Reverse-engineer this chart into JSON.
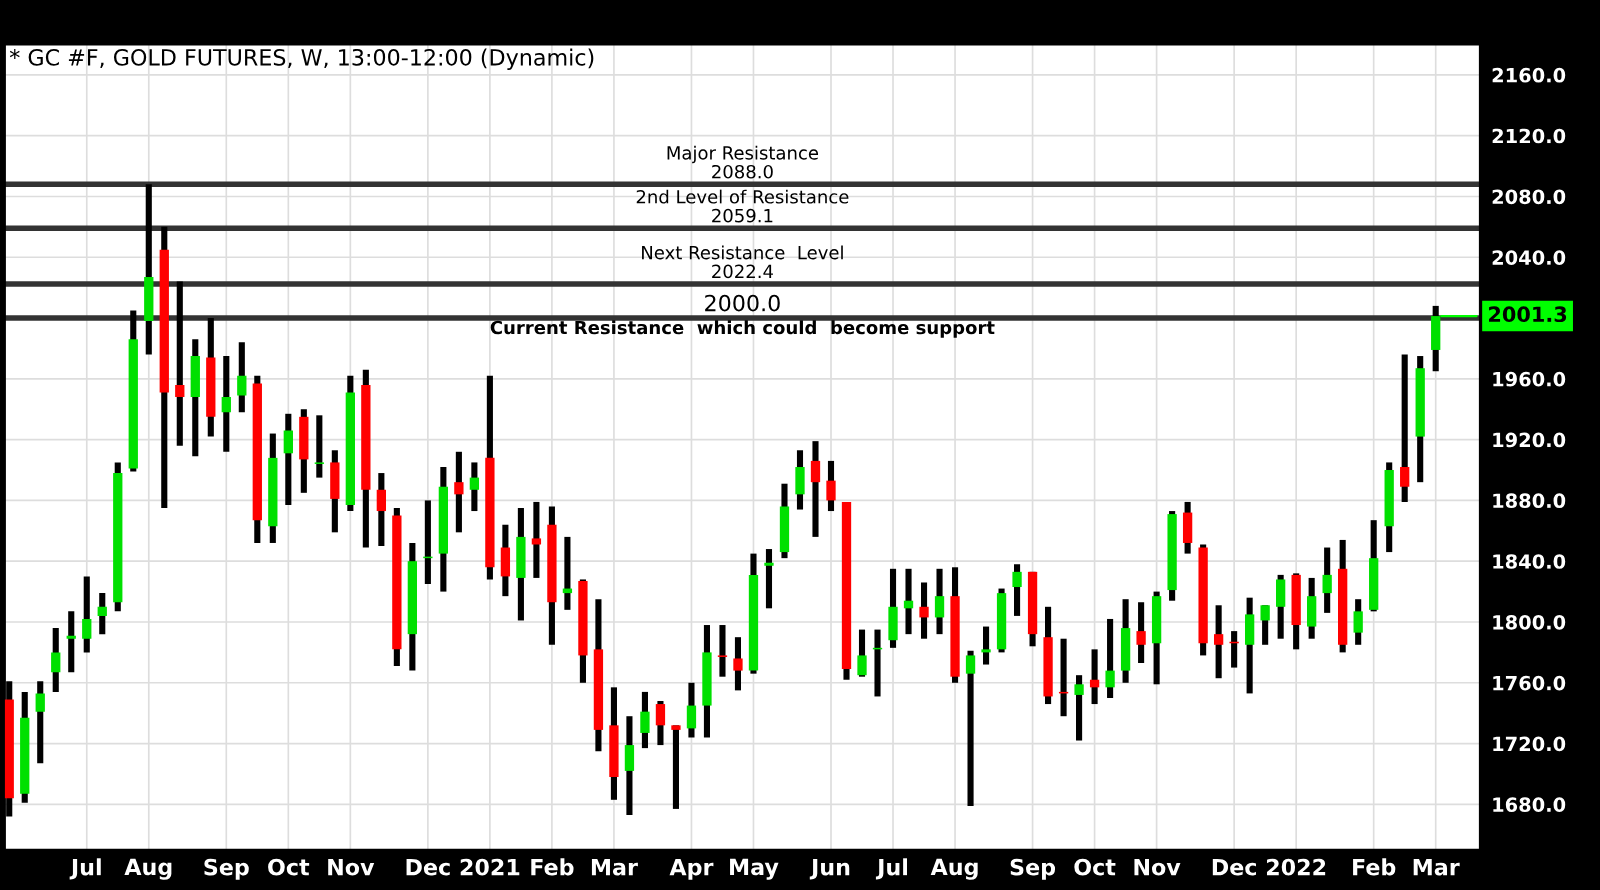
{
  "chart_data": {
    "type": "candlestick",
    "title": "* GC #F, GOLD FUTURES, W, 13:00-12:00 (Dynamic)",
    "x": [
      "2020-06-01",
      "2020-06-08",
      "2020-06-15",
      "2020-06-22",
      "2020-06-29",
      "2020-07-06",
      "2020-07-13",
      "2020-07-20",
      "2020-07-27",
      "2020-08-03",
      "2020-08-10",
      "2020-08-17",
      "2020-08-24",
      "2020-08-31",
      "2020-09-07",
      "2020-09-14",
      "2020-09-21",
      "2020-09-28",
      "2020-10-05",
      "2020-10-12",
      "2020-10-19",
      "2020-10-26",
      "2020-11-02",
      "2020-11-09",
      "2020-11-16",
      "2020-11-23",
      "2020-11-30",
      "2020-12-07",
      "2020-12-14",
      "2020-12-21",
      "2020-12-28",
      "2021-01-04",
      "2021-01-11",
      "2021-01-18",
      "2021-01-25",
      "2021-02-01",
      "2021-02-08",
      "2021-02-15",
      "2021-02-22",
      "2021-03-01",
      "2021-03-08",
      "2021-03-15",
      "2021-03-22",
      "2021-03-29",
      "2021-04-05",
      "2021-04-12",
      "2021-04-19",
      "2021-04-26",
      "2021-05-03",
      "2021-05-10",
      "2021-05-17",
      "2021-05-24",
      "2021-05-31",
      "2021-06-07",
      "2021-06-14",
      "2021-06-21",
      "2021-06-28",
      "2021-07-05",
      "2021-07-12",
      "2021-07-19",
      "2021-07-26",
      "2021-08-02",
      "2021-08-09",
      "2021-08-16",
      "2021-08-23",
      "2021-08-30",
      "2021-09-06",
      "2021-09-13",
      "2021-09-20",
      "2021-09-27",
      "2021-10-04",
      "2021-10-11",
      "2021-10-18",
      "2021-10-25",
      "2021-11-01",
      "2021-11-08",
      "2021-11-15",
      "2021-11-22",
      "2021-11-29",
      "2021-12-06",
      "2021-12-13",
      "2021-12-20",
      "2021-12-27",
      "2022-01-03",
      "2022-01-10",
      "2022-01-17",
      "2022-01-24",
      "2022-01-31",
      "2022-02-07",
      "2022-02-14",
      "2022-02-21",
      "2022-02-28",
      "2022-03-07"
    ],
    "ohlc": [
      [
        1749,
        1761,
        1672,
        1684
      ],
      [
        1687,
        1754,
        1681,
        1737
      ],
      [
        1741,
        1761,
        1707,
        1753
      ],
      [
        1767,
        1796,
        1754,
        1780
      ],
      [
        1789,
        1807,
        1767,
        1791
      ],
      [
        1789,
        1830,
        1780,
        1802
      ],
      [
        1804,
        1819,
        1792,
        1810
      ],
      [
        1813,
        1905,
        1807,
        1898
      ],
      [
        1901,
        2005,
        1899,
        1986
      ],
      [
        1998,
        2088,
        1976,
        2027
      ],
      [
        2045,
        2060,
        1875,
        1951
      ],
      [
        1956,
        2024,
        1916,
        1948
      ],
      [
        1948,
        1986,
        1909,
        1975
      ],
      [
        1974,
        2000,
        1922,
        1935
      ],
      [
        1938,
        1975,
        1912,
        1948
      ],
      [
        1949,
        1984,
        1938,
        1962
      ],
      [
        1957,
        1962,
        1852,
        1867
      ],
      [
        1863,
        1924,
        1852,
        1908
      ],
      [
        1911,
        1937,
        1877,
        1926
      ],
      [
        1935,
        1940,
        1885,
        1907
      ],
      [
        1904,
        1936,
        1895,
        1905
      ],
      [
        1905,
        1913,
        1859,
        1881
      ],
      [
        1877,
        1962,
        1873,
        1951
      ],
      [
        1956,
        1966,
        1849,
        1887
      ],
      [
        1887,
        1898,
        1850,
        1873
      ],
      [
        1870,
        1875,
        1771,
        1782
      ],
      [
        1792,
        1852,
        1768,
        1840
      ],
      [
        1842,
        1880,
        1825,
        1843
      ],
      [
        1845,
        1902,
        1820,
        1889
      ],
      [
        1892,
        1912,
        1859,
        1884
      ],
      [
        1887,
        1905,
        1873,
        1895
      ],
      [
        1908,
        1962,
        1828,
        1836
      ],
      [
        1849,
        1864,
        1817,
        1830
      ],
      [
        1829,
        1875,
        1801,
        1856
      ],
      [
        1855,
        1879,
        1829,
        1851
      ],
      [
        1864,
        1876,
        1785,
        1813
      ],
      [
        1819,
        1856,
        1808,
        1822
      ],
      [
        1827,
        1828,
        1760,
        1778
      ],
      [
        1782,
        1815,
        1715,
        1729
      ],
      [
        1732,
        1757,
        1683,
        1698
      ],
      [
        1702,
        1738,
        1673,
        1719
      ],
      [
        1727,
        1754,
        1717,
        1741
      ],
      [
        1746,
        1748,
        1719,
        1732
      ],
      [
        1732,
        1732,
        1677,
        1729
      ],
      [
        1730,
        1760,
        1724,
        1745
      ],
      [
        1745,
        1798,
        1724,
        1780
      ],
      [
        1778,
        1798,
        1764,
        1777
      ],
      [
        1776,
        1790,
        1755,
        1768
      ],
      [
        1768,
        1845,
        1766,
        1831
      ],
      [
        1837,
        1848,
        1809,
        1839
      ],
      [
        1846,
        1891,
        1842,
        1876
      ],
      [
        1884,
        1913,
        1874,
        1902
      ],
      [
        1906,
        1919,
        1856,
        1892
      ],
      [
        1893,
        1906,
        1873,
        1880
      ],
      [
        1879,
        1879,
        1762,
        1769
      ],
      [
        1765,
        1795,
        1764,
        1778
      ],
      [
        1782,
        1795,
        1751,
        1783
      ],
      [
        1788,
        1835,
        1783,
        1810
      ],
      [
        1809,
        1835,
        1792,
        1814
      ],
      [
        1810,
        1826,
        1789,
        1803
      ],
      [
        1803,
        1835,
        1792,
        1817
      ],
      [
        1817,
        1836,
        1760,
        1764
      ],
      [
        1766,
        1781,
        1679,
        1778
      ],
      [
        1780,
        1797,
        1772,
        1782
      ],
      [
        1782,
        1822,
        1780,
        1819
      ],
      [
        1823,
        1838,
        1804,
        1833
      ],
      [
        1833,
        1833,
        1784,
        1792
      ],
      [
        1790,
        1810,
        1746,
        1751
      ],
      [
        1754,
        1789,
        1738,
        1753
      ],
      [
        1752,
        1765,
        1722,
        1759
      ],
      [
        1762,
        1782,
        1746,
        1757
      ],
      [
        1757,
        1802,
        1750,
        1768
      ],
      [
        1768,
        1815,
        1760,
        1796
      ],
      [
        1794,
        1813,
        1773,
        1785
      ],
      [
        1786,
        1820,
        1759,
        1817
      ],
      [
        1821,
        1873,
        1814,
        1871
      ],
      [
        1872,
        1879,
        1845,
        1852
      ],
      [
        1849,
        1851,
        1778,
        1786
      ],
      [
        1792,
        1811,
        1763,
        1785
      ],
      [
        1787,
        1794,
        1770,
        1786
      ],
      [
        1785,
        1816,
        1753,
        1805
      ],
      [
        1801,
        1811,
        1785,
        1811
      ],
      [
        1810,
        1831,
        1789,
        1828
      ],
      [
        1831,
        1832,
        1782,
        1798
      ],
      [
        1797,
        1829,
        1789,
        1817
      ],
      [
        1819,
        1849,
        1806,
        1831
      ],
      [
        1835,
        1854,
        1780,
        1785
      ],
      [
        1793,
        1815,
        1785,
        1807
      ],
      [
        1808,
        1867,
        1807,
        1842
      ],
      [
        1863,
        1905,
        1846,
        1900
      ],
      [
        1902,
        1976,
        1879,
        1889
      ],
      [
        1922,
        1975,
        1892,
        1967
      ],
      [
        1979,
        2008,
        1965,
        2001.3
      ]
    ],
    "xlim": [
      "2020-05-30",
      "2022-03-27"
    ],
    "ylim": [
      1650,
      2180
    ],
    "yticks": [
      {
        "value": 1680,
        "label": "1680.0"
      },
      {
        "value": 1720,
        "label": "1720.0"
      },
      {
        "value": 1760,
        "label": "1760.0"
      },
      {
        "value": 1800,
        "label": "1800.0"
      },
      {
        "value": 1840,
        "label": "1840.0"
      },
      {
        "value": 1880,
        "label": "1880.0"
      },
      {
        "value": 1920,
        "label": "1920.0"
      },
      {
        "value": 1960,
        "label": "1960.0"
      },
      {
        "value": 2040,
        "label": "2040.0"
      },
      {
        "value": 2080,
        "label": "2080.0"
      },
      {
        "value": 2120,
        "label": "2120.0"
      },
      {
        "value": 2160,
        "label": "2160.0"
      }
    ],
    "xticks": [
      {
        "value": "2020-07-06",
        "label": "Jul"
      },
      {
        "value": "2020-08-03",
        "label": "Aug"
      },
      {
        "value": "2020-09-07",
        "label": "Sep"
      },
      {
        "value": "2020-10-05",
        "label": "Oct"
      },
      {
        "value": "2020-11-02",
        "label": "Nov"
      },
      {
        "value": "2020-12-07",
        "label": "Dec"
      },
      {
        "value": "2021-01-04",
        "label": "2021"
      },
      {
        "value": "2021-02-01",
        "label": "Feb"
      },
      {
        "value": "2021-03-01",
        "label": "Mar"
      },
      {
        "value": "2021-04-05",
        "label": "Apr"
      },
      {
        "value": "2021-05-03",
        "label": "May"
      },
      {
        "value": "2021-06-07",
        "label": "Jun"
      },
      {
        "value": "2021-07-05",
        "label": "Jul"
      },
      {
        "value": "2021-08-02",
        "label": "Aug"
      },
      {
        "value": "2021-09-06",
        "label": "Sep"
      },
      {
        "value": "2021-10-04",
        "label": "Oct"
      },
      {
        "value": "2021-11-01",
        "label": "Nov"
      },
      {
        "value": "2021-12-06",
        "label": "Dec"
      },
      {
        "value": "2022-01-03",
        "label": "2022"
      },
      {
        "value": "2022-02-07",
        "label": "Feb"
      },
      {
        "value": "2022-03-07",
        "label": "Mar"
      }
    ],
    "grid": true,
    "ref_lines": [
      {
        "axis": "y",
        "value": 2088.0,
        "label": "Major Resistance\n2088.0",
        "color": "#333333"
      },
      {
        "axis": "y",
        "value": 2059.1,
        "label": "2nd Level of Resistance\n2059.1",
        "color": "#333333"
      },
      {
        "axis": "y",
        "value": 2022.4,
        "label": "Next Resistance  Level\n2022.4",
        "color": "#333333"
      },
      {
        "axis": "y",
        "value": 2000.0,
        "label": "2000.0\nCurrent Resistance  which could  become support",
        "color": "#333333"
      }
    ],
    "annotations": [
      {
        "text": "2001.3",
        "x": "2022-03-07",
        "y": 2001.3
      }
    ]
  }
}
